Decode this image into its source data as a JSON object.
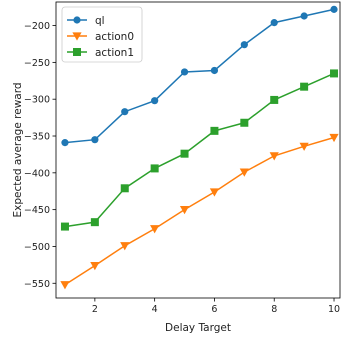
{
  "chart_data": {
    "type": "line",
    "xlabel": "Delay Target",
    "ylabel": "Expected average reward",
    "xlim": [
      0.7,
      10.2
    ],
    "ylim": [
      -570,
      -168
    ],
    "xticks": [
      2,
      4,
      6,
      8,
      10
    ],
    "yticks": [
      -550,
      -500,
      -450,
      -400,
      -350,
      -300,
      -250,
      -200
    ],
    "legend_position": "top-left",
    "grid": false,
    "x": [
      1,
      2,
      3,
      4,
      5,
      6,
      7,
      8,
      9,
      10
    ],
    "series": [
      {
        "name": "ql",
        "color": "#1f77b4",
        "marker": "circle",
        "values": [
          -359,
          -355,
          -317,
          -302,
          -263,
          -261,
          -226,
          -196,
          -187,
          -178
        ]
      },
      {
        "name": "action0",
        "color": "#ff7f0e",
        "marker": "triangle-down",
        "values": [
          -552,
          -526,
          -499,
          -476,
          -450,
          -426,
          -399,
          -377,
          -364,
          -352
        ]
      },
      {
        "name": "action1",
        "color": "#2ca02c",
        "marker": "square",
        "values": [
          -473,
          -467,
          -421,
          -394,
          -374,
          -343,
          -332,
          -301,
          -283,
          -265
        ]
      }
    ]
  }
}
